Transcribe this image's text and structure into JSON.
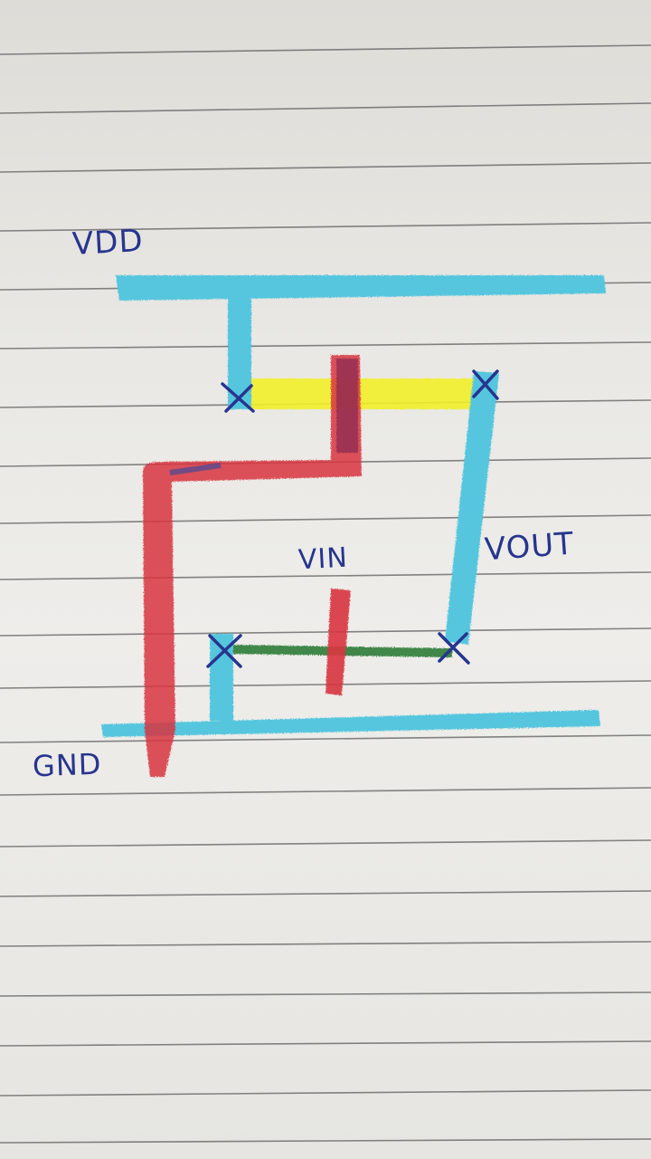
{
  "labels": {
    "vdd": "VDD",
    "vout": "VOUT",
    "vin": "VIN",
    "gnd": "GND"
  },
  "colors": {
    "metal": "#55c6de",
    "poly": "#d9363f",
    "p_diffusion": "#f2ef2a",
    "n_diffusion": "#2f7d38",
    "contact": "#27358f"
  }
}
